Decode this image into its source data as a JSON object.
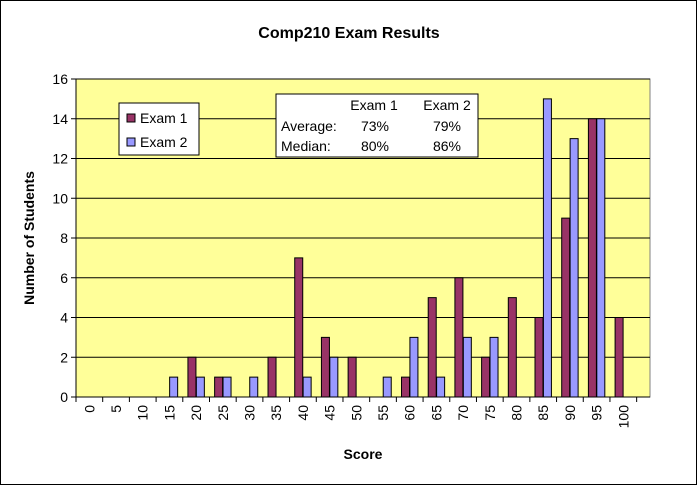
{
  "chart_data": {
    "type": "bar",
    "title": "Comp210 Exam Results",
    "xlabel": "Score",
    "ylabel": "Number of Students",
    "ylim": [
      0,
      16
    ],
    "yticks": [
      0,
      2,
      4,
      6,
      8,
      10,
      12,
      14,
      16
    ],
    "categories": [
      "0",
      "5",
      "10",
      "15",
      "20",
      "25",
      "30",
      "35",
      "40",
      "45",
      "50",
      "55",
      "60",
      "65",
      "70",
      "75",
      "80",
      "85",
      "90",
      "95",
      "100"
    ],
    "series": [
      {
        "name": "Exam 1",
        "color": "#993366",
        "values": [
          0,
          0,
          0,
          0,
          2,
          1,
          0,
          2,
          7,
          3,
          2,
          0,
          1,
          5,
          6,
          2,
          5,
          4,
          9,
          14,
          4
        ]
      },
      {
        "name": "Exam 2",
        "color": "#9999ff",
        "values": [
          0,
          0,
          0,
          1,
          1,
          1,
          1,
          0,
          1,
          2,
          0,
          1,
          3,
          1,
          3,
          3,
          0,
          15,
          13,
          14,
          0
        ]
      }
    ],
    "grid": true,
    "legend": "top-left",
    "plot_background": "#ffff99",
    "stats_box": {
      "headers": [
        "Exam 1",
        "Exam 2"
      ],
      "rows": [
        {
          "label": "Average:",
          "values": [
            "73%",
            "79%"
          ]
        },
        {
          "label": "Median:",
          "values": [
            "80%",
            "86%"
          ]
        }
      ]
    }
  }
}
